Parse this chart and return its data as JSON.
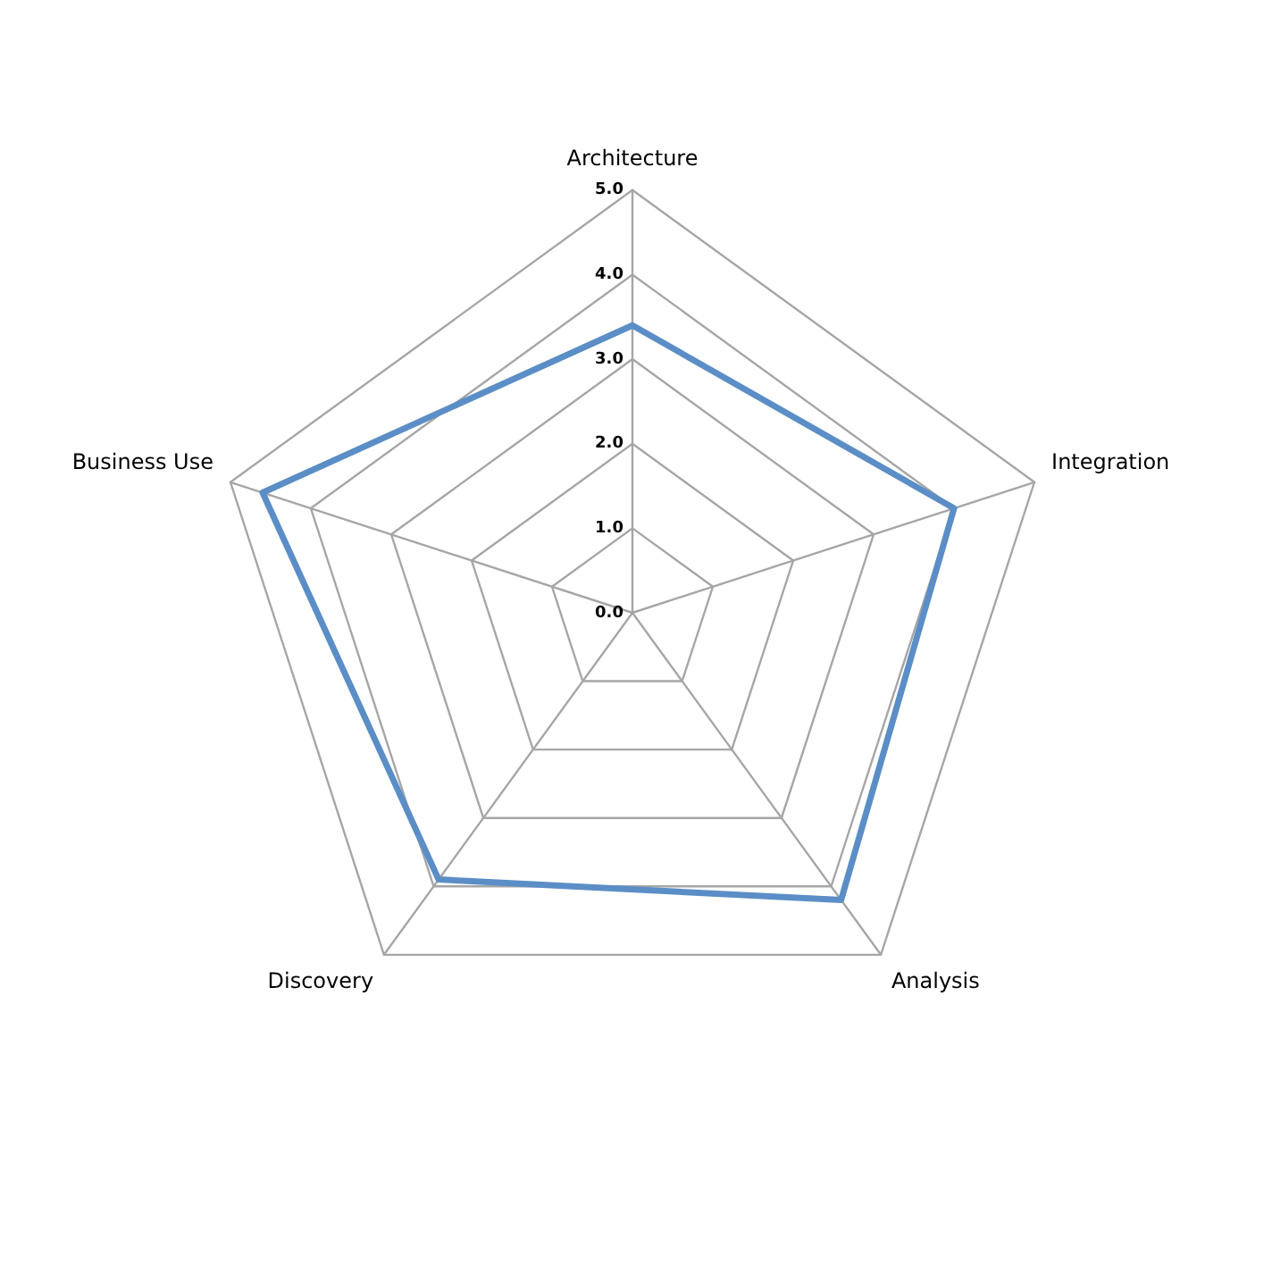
{
  "chart_data": {
    "type": "radar",
    "categories": [
      "Architecture",
      "Integration",
      "Analysis",
      "Discovery",
      "Business Use"
    ],
    "series": [
      {
        "color": "#5b8ec6",
        "values": [
          3.4,
          4.0,
          4.2,
          3.9,
          4.6
        ]
      }
    ],
    "ylim": [
      0,
      5
    ],
    "yticks": [
      {
        "value": 0,
        "label": "0.0"
      },
      {
        "value": 1,
        "label": "1.0"
      },
      {
        "value": 2,
        "label": "2.0"
      },
      {
        "value": 3,
        "label": "3.0"
      },
      {
        "value": 4,
        "label": "4.0"
      },
      {
        "value": 5,
        "label": "5.0"
      }
    ],
    "grid": true,
    "legend": false,
    "marker": "none",
    "line_style": "solid"
  }
}
